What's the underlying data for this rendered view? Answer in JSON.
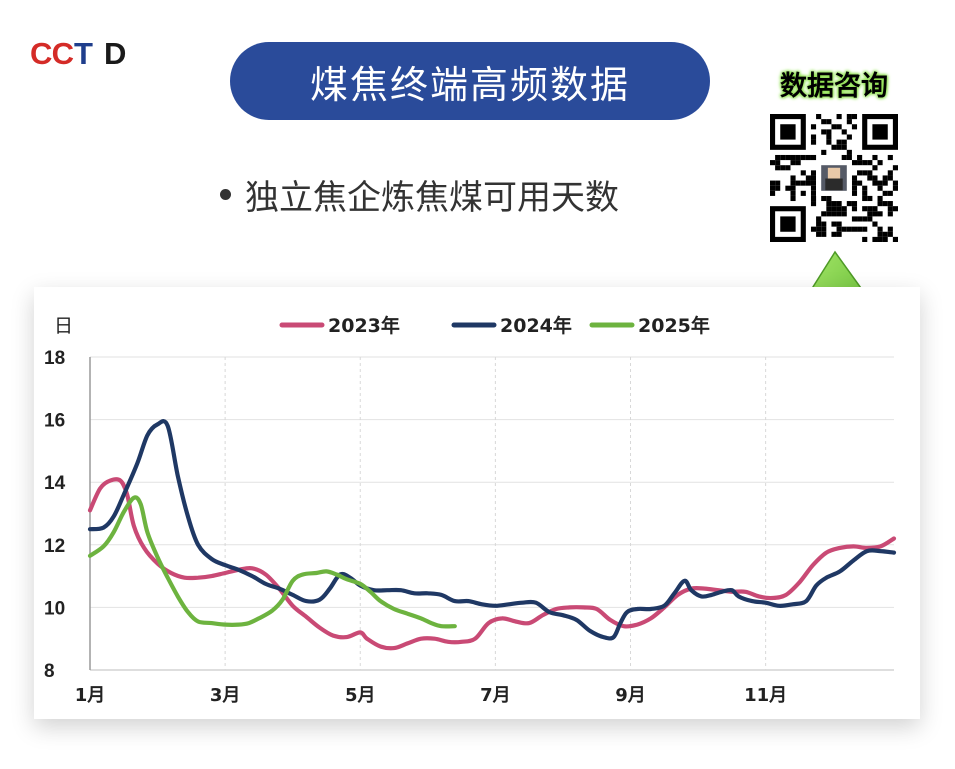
{
  "logo": {
    "text": "CCTD"
  },
  "header": {
    "title": "煤焦终端高频数据"
  },
  "subtitle": {
    "text": "独立焦企炼焦煤可用天数"
  },
  "qr": {
    "label": "数据咨询"
  },
  "colors": {
    "pill": "#2a4b9a",
    "s2023": "#c94a75",
    "s2024": "#1f3864",
    "s2025": "#6db33f",
    "qr_label_glow": "#8ee04d"
  },
  "icons": {
    "qr": "qr-code-icon",
    "arrow": "arrow-up-icon"
  },
  "chart_data": {
    "type": "line",
    "ylabel": "日",
    "ylim": [
      8,
      18
    ],
    "yticks": [
      8,
      10,
      12,
      14,
      16,
      18
    ],
    "xlim": [
      1,
      12.9
    ],
    "xticks": [
      {
        "pos": 1,
        "label": "1月"
      },
      {
        "pos": 3,
        "label": "3月"
      },
      {
        "pos": 5,
        "label": "5月"
      },
      {
        "pos": 7,
        "label": "7月"
      },
      {
        "pos": 9,
        "label": "9月"
      },
      {
        "pos": 11,
        "label": "11月"
      }
    ],
    "grid": "horizontal",
    "legend": "top-center",
    "series": [
      {
        "name": "2023年",
        "color": "#c94a75",
        "points": [
          [
            1.0,
            13.1
          ],
          [
            1.15,
            13.8
          ],
          [
            1.3,
            14.05
          ],
          [
            1.45,
            14.05
          ],
          [
            1.55,
            13.6
          ],
          [
            1.65,
            12.6
          ],
          [
            1.8,
            11.9
          ],
          [
            2.0,
            11.4
          ],
          [
            2.2,
            11.1
          ],
          [
            2.4,
            10.95
          ],
          [
            2.6,
            10.95
          ],
          [
            2.8,
            11.0
          ],
          [
            3.0,
            11.1
          ],
          [
            3.2,
            11.2
          ],
          [
            3.4,
            11.25
          ],
          [
            3.6,
            11.05
          ],
          [
            3.8,
            10.6
          ],
          [
            4.0,
            10.05
          ],
          [
            4.2,
            9.7
          ],
          [
            4.4,
            9.35
          ],
          [
            4.6,
            9.1
          ],
          [
            4.8,
            9.05
          ],
          [
            5.0,
            9.2
          ],
          [
            5.1,
            9.0
          ],
          [
            5.3,
            8.75
          ],
          [
            5.5,
            8.7
          ],
          [
            5.7,
            8.85
          ],
          [
            5.9,
            9.0
          ],
          [
            6.1,
            9.0
          ],
          [
            6.3,
            8.9
          ],
          [
            6.5,
            8.9
          ],
          [
            6.7,
            9.0
          ],
          [
            6.9,
            9.5
          ],
          [
            7.1,
            9.65
          ],
          [
            7.3,
            9.55
          ],
          [
            7.5,
            9.5
          ],
          [
            7.7,
            9.75
          ],
          [
            7.9,
            9.95
          ],
          [
            8.1,
            10.0
          ],
          [
            8.3,
            10.0
          ],
          [
            8.5,
            9.95
          ],
          [
            8.7,
            9.6
          ],
          [
            8.9,
            9.4
          ],
          [
            9.1,
            9.45
          ],
          [
            9.3,
            9.65
          ],
          [
            9.5,
            10.0
          ],
          [
            9.7,
            10.4
          ],
          [
            9.9,
            10.6
          ],
          [
            10.1,
            10.6
          ],
          [
            10.3,
            10.55
          ],
          [
            10.5,
            10.5
          ],
          [
            10.7,
            10.5
          ],
          [
            10.9,
            10.35
          ],
          [
            11.1,
            10.3
          ],
          [
            11.3,
            10.4
          ],
          [
            11.5,
            10.8
          ],
          [
            11.7,
            11.35
          ],
          [
            11.9,
            11.75
          ],
          [
            12.1,
            11.9
          ],
          [
            12.3,
            11.95
          ],
          [
            12.5,
            11.9
          ],
          [
            12.7,
            11.95
          ],
          [
            12.9,
            12.2
          ]
        ]
      },
      {
        "name": "2024年",
        "color": "#1f3864",
        "points": [
          [
            1.0,
            12.5
          ],
          [
            1.2,
            12.55
          ],
          [
            1.35,
            12.9
          ],
          [
            1.5,
            13.6
          ],
          [
            1.7,
            14.6
          ],
          [
            1.85,
            15.5
          ],
          [
            2.0,
            15.85
          ],
          [
            2.15,
            15.8
          ],
          [
            2.3,
            14.2
          ],
          [
            2.45,
            12.9
          ],
          [
            2.6,
            12.0
          ],
          [
            2.8,
            11.55
          ],
          [
            3.0,
            11.35
          ],
          [
            3.2,
            11.2
          ],
          [
            3.4,
            11.0
          ],
          [
            3.6,
            10.75
          ],
          [
            3.8,
            10.6
          ],
          [
            4.0,
            10.4
          ],
          [
            4.2,
            10.2
          ],
          [
            4.4,
            10.25
          ],
          [
            4.55,
            10.6
          ],
          [
            4.7,
            11.05
          ],
          [
            4.85,
            10.95
          ],
          [
            5.0,
            10.7
          ],
          [
            5.2,
            10.55
          ],
          [
            5.4,
            10.55
          ],
          [
            5.6,
            10.55
          ],
          [
            5.8,
            10.45
          ],
          [
            6.0,
            10.45
          ],
          [
            6.2,
            10.4
          ],
          [
            6.4,
            10.2
          ],
          [
            6.6,
            10.2
          ],
          [
            6.8,
            10.1
          ],
          [
            7.0,
            10.05
          ],
          [
            7.2,
            10.1
          ],
          [
            7.4,
            10.15
          ],
          [
            7.6,
            10.15
          ],
          [
            7.8,
            9.85
          ],
          [
            8.0,
            9.75
          ],
          [
            8.2,
            9.6
          ],
          [
            8.4,
            9.25
          ],
          [
            8.6,
            9.05
          ],
          [
            8.75,
            9.05
          ],
          [
            8.85,
            9.5
          ],
          [
            8.95,
            9.85
          ],
          [
            9.1,
            9.95
          ],
          [
            9.3,
            9.95
          ],
          [
            9.5,
            10.05
          ],
          [
            9.65,
            10.45
          ],
          [
            9.8,
            10.85
          ],
          [
            9.9,
            10.55
          ],
          [
            10.05,
            10.35
          ],
          [
            10.2,
            10.4
          ],
          [
            10.35,
            10.5
          ],
          [
            10.5,
            10.55
          ],
          [
            10.6,
            10.35
          ],
          [
            10.8,
            10.2
          ],
          [
            11.0,
            10.15
          ],
          [
            11.2,
            10.05
          ],
          [
            11.4,
            10.1
          ],
          [
            11.6,
            10.2
          ],
          [
            11.75,
            10.7
          ],
          [
            11.9,
            10.95
          ],
          [
            12.1,
            11.15
          ],
          [
            12.3,
            11.5
          ],
          [
            12.5,
            11.8
          ],
          [
            12.7,
            11.8
          ],
          [
            12.9,
            11.75
          ]
        ]
      },
      {
        "name": "2025年",
        "color": "#6db33f",
        "points": [
          [
            1.0,
            11.65
          ],
          [
            1.2,
            11.95
          ],
          [
            1.35,
            12.4
          ],
          [
            1.5,
            13.05
          ],
          [
            1.65,
            13.5
          ],
          [
            1.75,
            13.3
          ],
          [
            1.85,
            12.4
          ],
          [
            2.0,
            11.6
          ],
          [
            2.15,
            10.95
          ],
          [
            2.3,
            10.35
          ],
          [
            2.45,
            9.85
          ],
          [
            2.6,
            9.55
          ],
          [
            2.8,
            9.5
          ],
          [
            3.0,
            9.45
          ],
          [
            3.2,
            9.45
          ],
          [
            3.35,
            9.5
          ],
          [
            3.5,
            9.65
          ],
          [
            3.7,
            9.9
          ],
          [
            3.85,
            10.25
          ],
          [
            4.0,
            10.85
          ],
          [
            4.15,
            11.05
          ],
          [
            4.35,
            11.1
          ],
          [
            4.5,
            11.15
          ],
          [
            4.65,
            11.05
          ],
          [
            4.8,
            10.9
          ],
          [
            5.0,
            10.75
          ],
          [
            5.15,
            10.5
          ],
          [
            5.3,
            10.2
          ],
          [
            5.5,
            9.95
          ],
          [
            5.7,
            9.8
          ],
          [
            5.9,
            9.65
          ],
          [
            6.05,
            9.5
          ],
          [
            6.2,
            9.4
          ],
          [
            6.4,
            9.4
          ]
        ]
      }
    ]
  }
}
